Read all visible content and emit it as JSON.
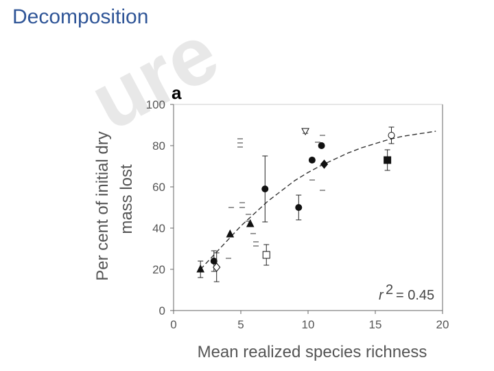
{
  "slide": {
    "title": "Decomposition",
    "watermark": "ure"
  },
  "chart_data": {
    "type": "scatter",
    "panel_label": "a",
    "title": "",
    "xlabel": "Mean realized species richness",
    "ylabel_line1": "Per cent of initial dry",
    "ylabel_line2": "mass lost",
    "xlim": [
      0,
      20
    ],
    "ylim": [
      0,
      100
    ],
    "xticks": [
      0,
      5,
      10,
      15,
      20
    ],
    "yticks": [
      0,
      20,
      40,
      60,
      80,
      100
    ],
    "annotation": {
      "r2_label": "r",
      "r2_sup": "2",
      "r2_value": "= 0.45"
    },
    "fit_curve": {
      "x": [
        2.0,
        3.0,
        4.0,
        5.0,
        6.0,
        7.0,
        8.0,
        9.0,
        10.0,
        11.0,
        12.0,
        13.0,
        14.0,
        15.0,
        16.0,
        17.0,
        18.0,
        19.5
      ],
      "y": [
        20,
        27,
        34,
        41,
        47,
        53,
        58,
        63,
        67,
        70.5,
        73.5,
        76.5,
        79,
        81,
        83,
        84.5,
        85.5,
        87
      ]
    },
    "points": [
      {
        "x": 2.0,
        "y": 20,
        "err": 4,
        "marker": "triangle-filled"
      },
      {
        "x": 3.0,
        "y": 24,
        "err": 5,
        "marker": "circle-filled"
      },
      {
        "x": 3.2,
        "y": 21,
        "err": 7,
        "marker": "diamond-open"
      },
      {
        "x": 4.2,
        "y": 37,
        "err": 0,
        "marker": "triangle-filled"
      },
      {
        "x": 5.7,
        "y": 42,
        "err": 0,
        "marker": "triangle-filled"
      },
      {
        "x": 6.8,
        "y": 59,
        "err": 16,
        "marker": "circle-filled"
      },
      {
        "x": 6.9,
        "y": 27,
        "err": 5,
        "marker": "square-open"
      },
      {
        "x": 9.3,
        "y": 50,
        "err": 6,
        "marker": "circle-filled"
      },
      {
        "x": 9.8,
        "y": 87,
        "err": 1,
        "marker": "triangle-open-down"
      },
      {
        "x": 10.3,
        "y": 73,
        "err": 1,
        "marker": "circle-filled"
      },
      {
        "x": 11.0,
        "y": 80,
        "err": 1,
        "marker": "circle-filled"
      },
      {
        "x": 11.2,
        "y": 71,
        "err": 0,
        "marker": "diamond-filled"
      },
      {
        "x": 15.9,
        "y": 73,
        "err": 5,
        "marker": "square-filled"
      },
      {
        "x": 16.2,
        "y": 85,
        "err": 4,
        "marker": "circle-open"
      }
    ]
  }
}
